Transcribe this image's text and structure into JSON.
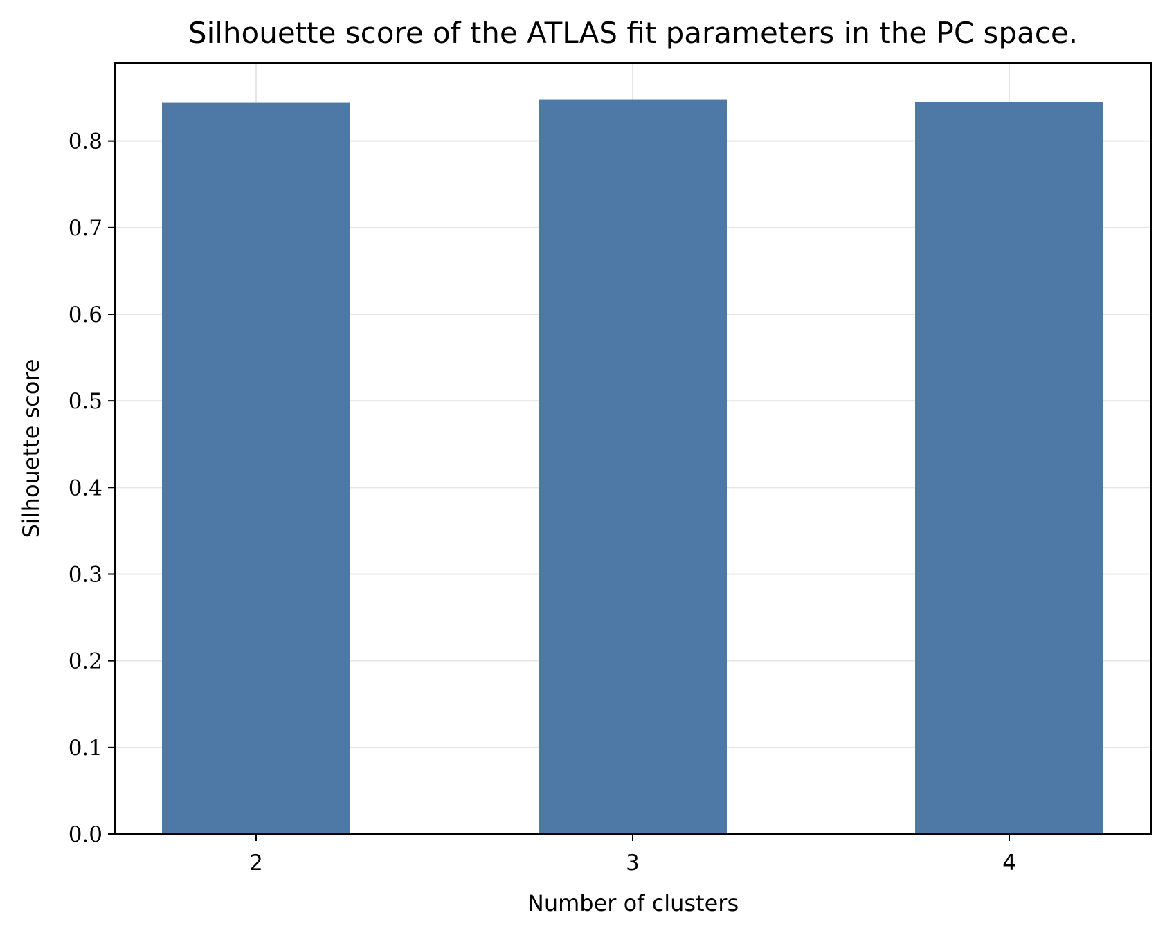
{
  "chart_data": {
    "type": "bar",
    "title": "Silhouette score of the ATLAS fit parameters in the PC space.",
    "xlabel": "Number of clusters",
    "ylabel": "Silhouette score",
    "categories": [
      "2",
      "3",
      "4"
    ],
    "values": [
      0.844,
      0.848,
      0.845
    ],
    "ylim": [
      0,
      0.89
    ],
    "yticks": [
      0.0,
      0.1,
      0.2,
      0.3,
      0.4,
      0.5,
      0.6,
      0.7,
      0.8
    ],
    "ytick_labels": [
      "0.0",
      "0.1",
      "0.2",
      "0.3",
      "0.4",
      "0.5",
      "0.6",
      "0.7",
      "0.8"
    ],
    "grid": true,
    "legend": "none",
    "bar_color": "#4e78a5"
  }
}
